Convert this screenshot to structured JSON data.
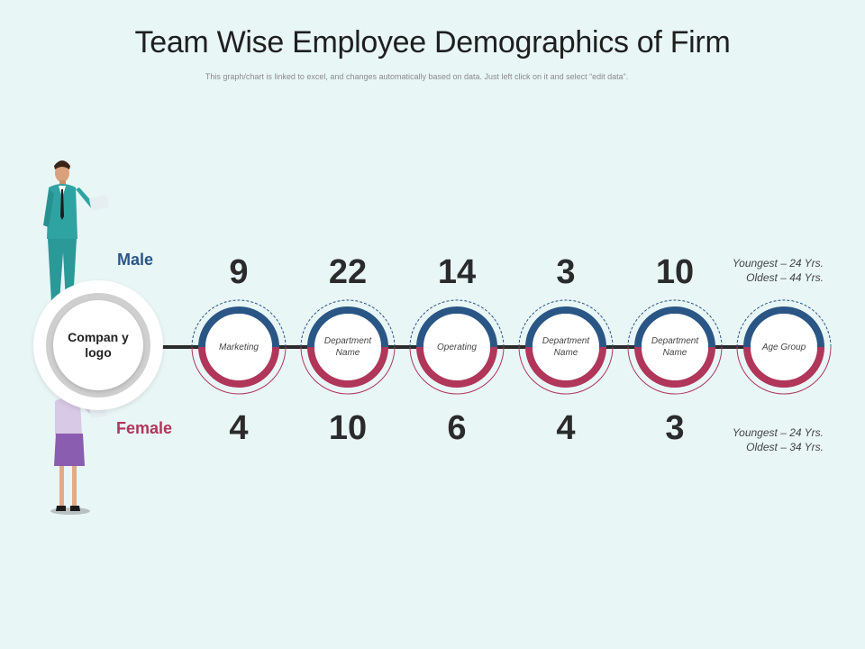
{
  "title": "Team Wise Employee Demographics of Firm",
  "subtitle": "This graph/chart is linked to excel, and changes automatically based on data. Just left click on it and select “edit data”.",
  "logo_text": "Compan y logo",
  "male_label": "Male",
  "female_label": "Female",
  "colors": {
    "male": "#2a5686",
    "female": "#b0365a",
    "background": "#e9f6f6"
  },
  "nodes": [
    {
      "label": "Marketing",
      "male": "9",
      "female": "4"
    },
    {
      "label": "Department Name",
      "male": "22",
      "female": "10"
    },
    {
      "label": "Operating",
      "male": "14",
      "female": "6"
    },
    {
      "label": "Department Name",
      "male": "3",
      "female": "4"
    },
    {
      "label": "Department Name",
      "male": "10",
      "female": "3"
    },
    {
      "label": "Age Group",
      "male": "",
      "female": ""
    }
  ],
  "male_age": {
    "youngest": "Youngest – 24 Yrs.",
    "oldest": "Oldest – 44 Yrs."
  },
  "female_age": {
    "youngest": "Youngest – 24 Yrs.",
    "oldest": "Oldest – 34 Yrs."
  }
}
